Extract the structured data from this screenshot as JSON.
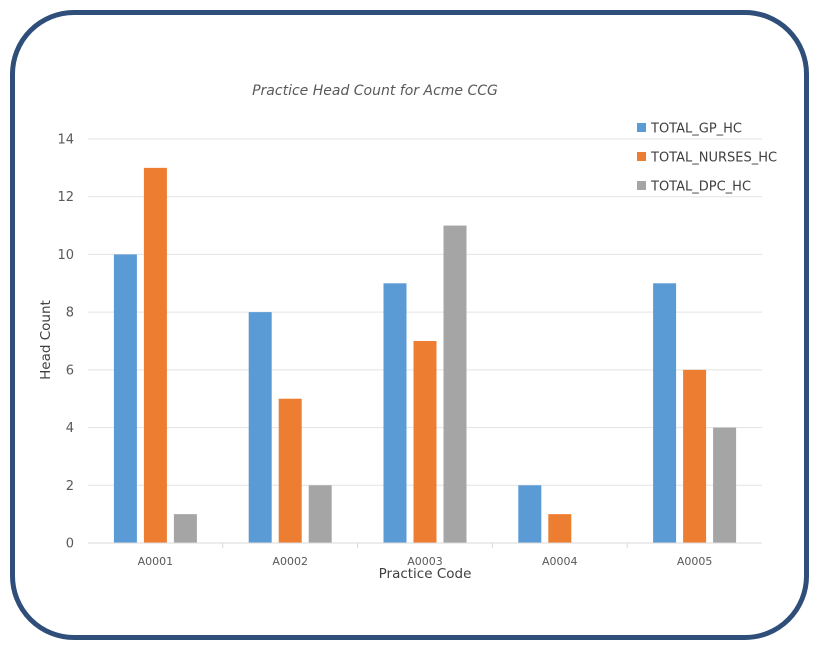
{
  "chart_data": {
    "type": "bar",
    "title": "Practice Head Count for Acme CCG",
    "xlabel": "Practice Code",
    "ylabel": "Head Count",
    "categories": [
      "A0001",
      "A0002",
      "A0003",
      "A0004",
      "A0005"
    ],
    "series": [
      {
        "name": "TOTAL_GP_HC",
        "color": "#5b9bd5",
        "values": [
          10,
          8,
          9,
          2,
          9
        ]
      },
      {
        "name": "TOTAL_NURSES_HC",
        "color": "#ed7d31",
        "values": [
          13,
          5,
          7,
          1,
          6
        ]
      },
      {
        "name": "TOTAL_DPC_HC",
        "color": "#a5a5a5",
        "values": [
          1,
          2,
          11,
          0,
          4
        ]
      }
    ],
    "ylim": [
      0,
      14
    ],
    "yticks": [
      0,
      2,
      4,
      6,
      8,
      10,
      12,
      14
    ],
    "grid": true,
    "legend_position": "top-right"
  }
}
